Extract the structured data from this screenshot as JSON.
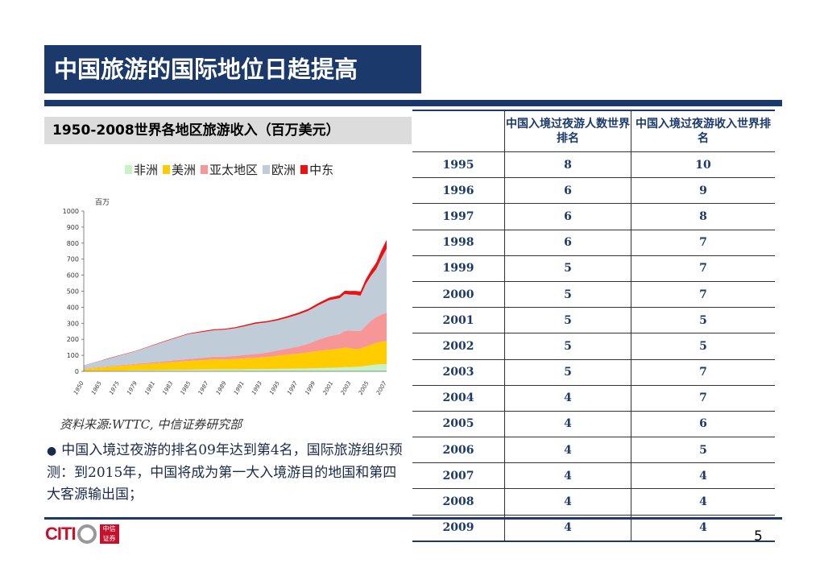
{
  "title": "中国旅游的国际地位日趋提高",
  "chart_data": {
    "type": "area",
    "stacked": true,
    "title": "1950-2008世界各地区旅游收入（百万美元）",
    "unit_label": "百万",
    "ylim": [
      0,
      1000
    ],
    "yticks": [
      "0",
      "100",
      "200",
      "300",
      "400",
      "500",
      "600",
      "700",
      "800",
      "900",
      "1000"
    ],
    "x": [
      1950,
      1955,
      1960,
      1965,
      1970,
      1975,
      1977,
      1979,
      1981,
      1983,
      1985,
      1987,
      1989,
      1991,
      1993,
      1995,
      1997,
      1999,
      2000,
      2001,
      2002,
      2003,
      2004,
      2005,
      2006,
      2007,
      2008
    ],
    "xtick_labels": [
      "1950",
      "1965",
      "1975",
      "1979",
      "1981",
      "1983",
      "1985",
      "1987",
      "1989",
      "1991",
      "1993",
      "1995",
      "1997",
      "1999",
      "2001",
      "2003",
      "2005",
      "2007"
    ],
    "series": [
      {
        "name": "非洲",
        "color": "#c8f2c8",
        "values": [
          2,
          4,
          6,
          8,
          10,
          12,
          12,
          12,
          13,
          14,
          14,
          15,
          16,
          17,
          18,
          20,
          22,
          24,
          26,
          26,
          28,
          30,
          34,
          38,
          42,
          45,
          45
        ]
      },
      {
        "name": "美洲",
        "color": "#ffcc00",
        "values": [
          12,
          25,
          35,
          45,
          55,
          62,
          62,
          65,
          68,
          70,
          75,
          82,
          88,
          92,
          100,
          108,
          112,
          118,
          122,
          118,
          110,
          112,
          120,
          128,
          135,
          140,
          145
        ]
      },
      {
        "name": "亚太地区",
        "color": "#f79696",
        "values": [
          2,
          3,
          5,
          8,
          12,
          18,
          18,
          20,
          22,
          24,
          28,
          32,
          38,
          45,
          55,
          70,
          85,
          90,
          105,
          110,
          115,
          110,
          130,
          150,
          160,
          170,
          175
        ]
      },
      {
        "name": "欧洲",
        "color": "#c0ccd8",
        "values": [
          20,
          50,
          80,
          120,
          155,
          165,
          168,
          172,
          180,
          190,
          188,
          188,
          192,
          200,
          205,
          215,
          225,
          225,
          230,
          225,
          225,
          220,
          260,
          280,
          300,
          350,
          400
        ]
      },
      {
        "name": "中东",
        "color": "#ee1111",
        "values": [
          1,
          2,
          2,
          3,
          4,
          6,
          6,
          6,
          7,
          8,
          8,
          9,
          10,
          11,
          12,
          14,
          16,
          18,
          20,
          22,
          24,
          26,
          30,
          34,
          40,
          50,
          55
        ]
      }
    ]
  },
  "source_note": "资料来源:WTTC, 中信证券研究部",
  "bullet_text": "中国入境过夜游的排名09年达到第4名，国际旅游组织预测：到2015年，中国将成为第一大入境游目的地国和第四大客源输出国；",
  "table": {
    "headers": [
      "",
      "中国入境过夜游人数世界排名",
      "中国入境过夜游收入世界排名"
    ],
    "rows": [
      [
        "1995",
        "8",
        "10"
      ],
      [
        "1996",
        "6",
        "9"
      ],
      [
        "1997",
        "6",
        "8"
      ],
      [
        "1998",
        "6",
        "7"
      ],
      [
        "1999",
        "5",
        "7"
      ],
      [
        "2000",
        "5",
        "7"
      ],
      [
        "2001",
        "5",
        "5"
      ],
      [
        "2002",
        "5",
        "5"
      ],
      [
        "2003",
        "5",
        "7"
      ],
      [
        "2004",
        "4",
        "7"
      ],
      [
        "2005",
        "4",
        "6"
      ],
      [
        "2006",
        "4",
        "5"
      ],
      [
        "2007",
        "4",
        "4"
      ],
      [
        "2008",
        "4",
        "4"
      ],
      [
        "2009",
        "4",
        "4"
      ]
    ]
  },
  "logo": {
    "text": "CITI",
    "box_line1": "中信",
    "box_line2": "证券"
  },
  "page_number": "5"
}
